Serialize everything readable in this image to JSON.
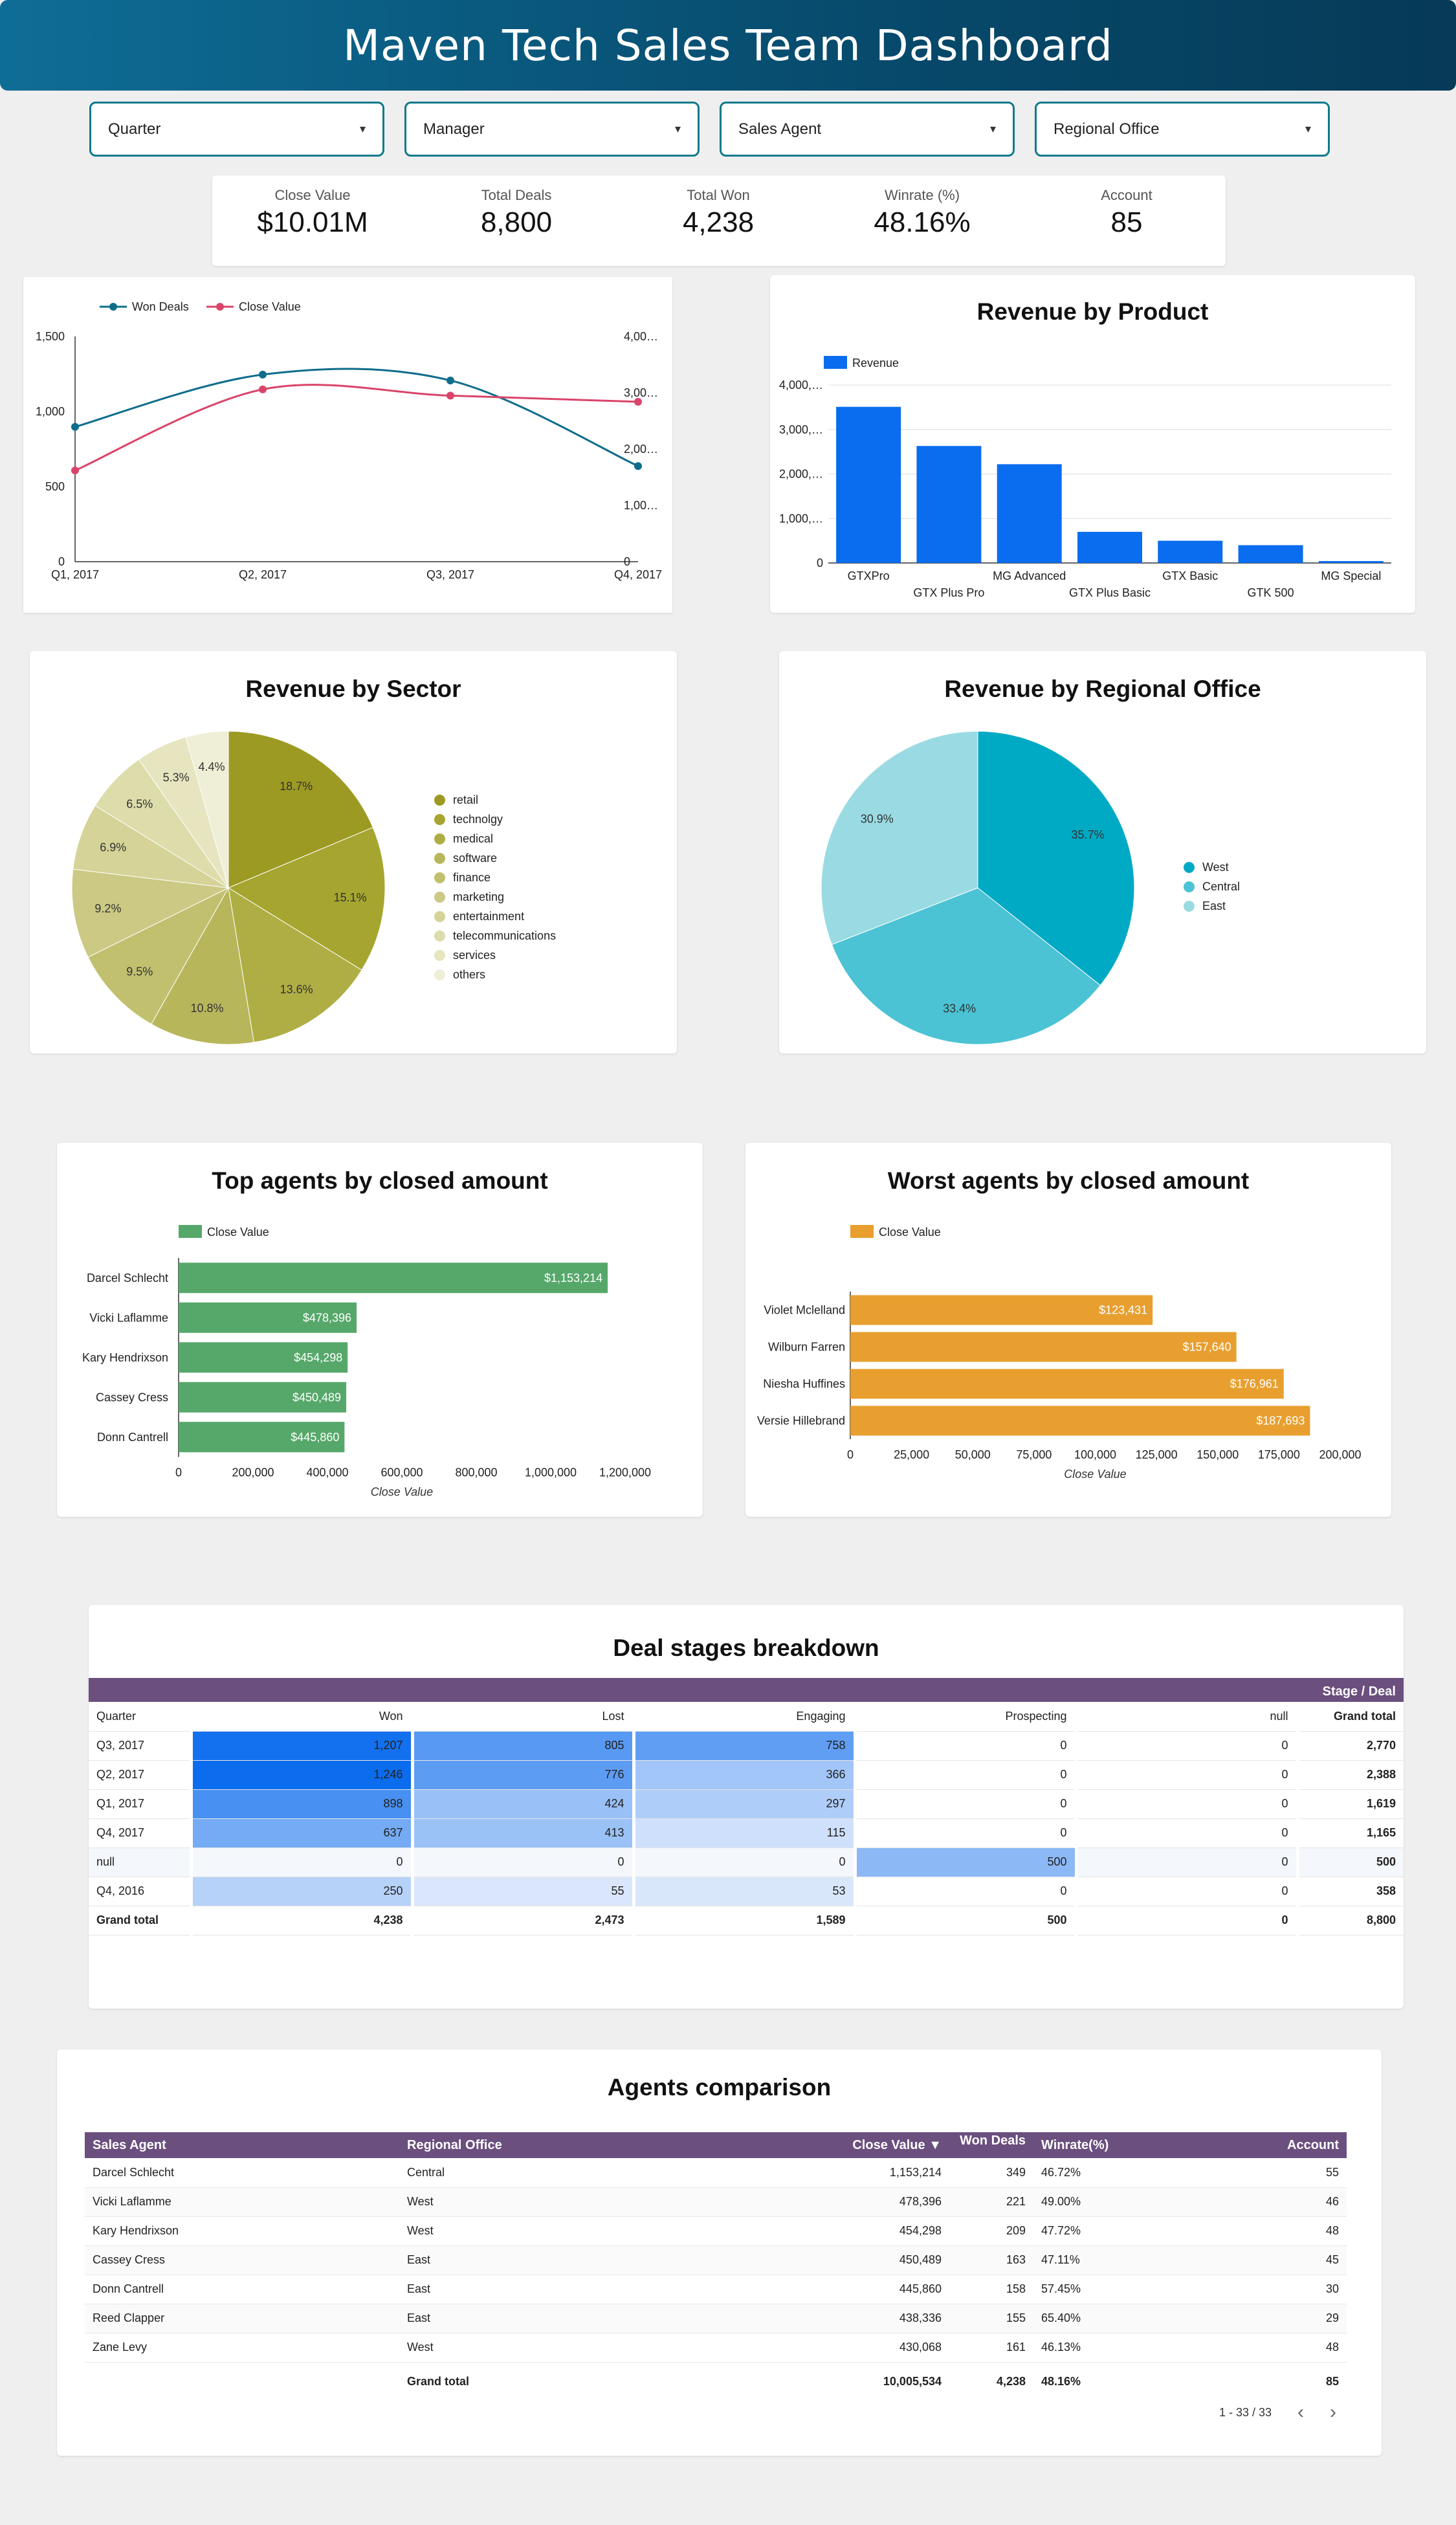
{
  "header": {
    "title": "Maven Tech Sales Team Dashboard"
  },
  "filters": [
    {
      "label": "Quarter"
    },
    {
      "label": "Manager"
    },
    {
      "label": "Sales Agent"
    },
    {
      "label": "Regional Office"
    }
  ],
  "kpis": [
    {
      "label": "Close Value",
      "value": "$10.01M"
    },
    {
      "label": "Total Deals",
      "value": "8,800"
    },
    {
      "label": "Total Won",
      "value": "4,238"
    },
    {
      "label": "Winrate (%)",
      "value": "48.16%"
    },
    {
      "label": "Account",
      "value": "85"
    }
  ],
  "chart_data": [
    {
      "id": "trend",
      "type": "line",
      "title": "",
      "categories": [
        "Q1, 2017",
        "Q2, 2017",
        "Q3, 2017",
        "Q4, 2017"
      ],
      "series": [
        {
          "name": "Won Deals",
          "axis": "left",
          "color": "#0e6d8a",
          "values": [
            898,
            1246,
            1207,
            637
          ]
        },
        {
          "name": "Close Value",
          "axis": "right",
          "color": "#d9456a",
          "values": [
            1620000,
            3060000,
            2950000,
            2840000
          ]
        }
      ],
      "left_ticks": [
        "0",
        "500",
        "1,000",
        "1,500"
      ],
      "left_ylim": [
        0,
        1500
      ],
      "right_ticks": [
        "0",
        "1,00…",
        "2,00…",
        "3,00…",
        "4,00…"
      ],
      "right_ylim": [
        0,
        4000000
      ]
    },
    {
      "id": "product",
      "type": "bar",
      "title": "Revenue by Product",
      "legend": "Revenue",
      "color": "#0a6cee",
      "categories": [
        "GTXPro",
        "GTX Plus Pro",
        "MG Advanced",
        "GTX Plus Basic",
        "GTX Basic",
        "GTK 500",
        "MG Special"
      ],
      "values": [
        3510000,
        2630000,
        2220000,
        700000,
        500000,
        400000,
        43000
      ],
      "ticks": [
        "0",
        "1,000,…",
        "2,000,…",
        "3,000,…",
        "4,000,…"
      ],
      "ylim": [
        0,
        4000000
      ]
    },
    {
      "id": "sector",
      "type": "pie",
      "title": "Revenue by Sector",
      "labels": [
        "retail",
        "technolgy",
        "medical",
        "software",
        "finance",
        "marketing",
        "entertainment",
        "telecommunications",
        "services",
        "others"
      ],
      "values": [
        18.7,
        15.1,
        13.6,
        10.8,
        9.5,
        9.2,
        6.9,
        6.5,
        5.3,
        4.4
      ],
      "value_labels": [
        "18.7%",
        "15.1%",
        "13.6%",
        "10.8%",
        "9.5%",
        "9.2%",
        "6.9%",
        "6.5%",
        "5.3%",
        "4.4%"
      ],
      "colors": [
        "#9c9a23",
        "#a6a52f",
        "#afae44",
        "#b8b65b",
        "#c1c06f",
        "#cbc983",
        "#d5d397",
        "#dddcab",
        "#e6e5c0",
        "#efeed6"
      ]
    },
    {
      "id": "office",
      "type": "pie",
      "title": "Revenue by Regional Office",
      "labels": [
        "West",
        "Central",
        "East"
      ],
      "values": [
        35.7,
        33.4,
        30.9
      ],
      "value_labels": [
        "35.7%",
        "33.4%",
        "30.9%"
      ],
      "colors": [
        "#00a9c4",
        "#4bc3d4",
        "#9adbe3"
      ]
    },
    {
      "id": "top",
      "type": "bar",
      "orientation": "horizontal",
      "title": "Top agents by closed amount",
      "legend": "Close Value",
      "xlabel": "Close Value",
      "color": "#56a86a",
      "categories": [
        "Darcel Schlecht",
        "Vicki Laflamme",
        "Kary Hendrixson",
        "Cassey Cress",
        "Donn Cantrell"
      ],
      "values": [
        1153214,
        478396,
        454298,
        450489,
        445860
      ],
      "value_labels": [
        "$1,153,214",
        "$478,396",
        "$454,298",
        "$450,489",
        "$445,860"
      ],
      "ticks": [
        "0",
        "200,000",
        "400,000",
        "600,000",
        "800,000",
        "1,000,000",
        "1,200,000"
      ],
      "xlim": [
        0,
        1200000
      ]
    },
    {
      "id": "worst",
      "type": "bar",
      "orientation": "horizontal",
      "title": "Worst agents by closed amount",
      "legend": "Close Value",
      "xlabel": "Close Value",
      "color": "#e89f2f",
      "categories": [
        "Violet Mclelland",
        "Wilburn Farren",
        "Niesha Huffines",
        "Versie Hillebrand"
      ],
      "values": [
        123431,
        157640,
        176961,
        187693
      ],
      "value_labels": [
        "$123,431",
        "$157,640",
        "$176,961",
        "$187,693"
      ],
      "ticks": [
        "0",
        "25,000",
        "50,000",
        "75,000",
        "100,000",
        "125,000",
        "150,000",
        "175,000",
        "200,000"
      ],
      "xlim": [
        0,
        200000
      ]
    }
  ],
  "pivot": {
    "title": "Deal stages breakdown",
    "group_header": "Stage / Deal",
    "row_header": "Quarter",
    "columns": [
      "Won",
      "Lost",
      "Engaging",
      "Prospecting",
      "null",
      "Grand total"
    ],
    "rows": [
      {
        "label": "Q3, 2017",
        "cells": [
          "1,207",
          "805",
          "758",
          "0",
          "0",
          "2,770"
        ],
        "vals": [
          1207,
          805,
          758,
          0,
          0
        ]
      },
      {
        "label": "Q2, 2017",
        "cells": [
          "1,246",
          "776",
          "366",
          "0",
          "0",
          "2,388"
        ],
        "vals": [
          1246,
          776,
          366,
          0,
          0
        ]
      },
      {
        "label": "Q1, 2017",
        "cells": [
          "898",
          "424",
          "297",
          "0",
          "0",
          "1,619"
        ],
        "vals": [
          898,
          424,
          297,
          0,
          0
        ]
      },
      {
        "label": "Q4, 2017",
        "cells": [
          "637",
          "413",
          "115",
          "0",
          "0",
          "1,165"
        ],
        "vals": [
          637,
          413,
          115,
          0,
          0
        ]
      },
      {
        "label": "null",
        "cells": [
          "0",
          "0",
          "0",
          "500",
          "0",
          "500"
        ],
        "vals": [
          0,
          0,
          0,
          500,
          0
        ]
      },
      {
        "label": "Q4, 2016",
        "cells": [
          "250",
          "55",
          "53",
          "0",
          "0",
          "358"
        ],
        "vals": [
          250,
          55,
          53,
          0,
          0
        ]
      }
    ],
    "total": {
      "label": "Grand total",
      "cells": [
        "4,238",
        "2,473",
        "1,589",
        "500",
        "0",
        "8,800"
      ]
    }
  },
  "comparison": {
    "title": "Agents comparison",
    "columns": [
      "Sales Agent",
      "Regional Office",
      "Close Value ▼",
      "Won Deals",
      "Winrate(%)",
      "Account"
    ],
    "rows": [
      [
        "Darcel Schlecht",
        "Central",
        "1,153,214",
        "349",
        "46.72%",
        "55"
      ],
      [
        "Vicki Laflamme",
        "West",
        "478,396",
        "221",
        "49.00%",
        "46"
      ],
      [
        "Kary Hendrixson",
        "West",
        "454,298",
        "209",
        "47.72%",
        "48"
      ],
      [
        "Cassey Cress",
        "East",
        "450,489",
        "163",
        "47.11%",
        "45"
      ],
      [
        "Donn Cantrell",
        "East",
        "445,860",
        "158",
        "57.45%",
        "30"
      ],
      [
        "Reed Clapper",
        "East",
        "438,336",
        "155",
        "65.40%",
        "29"
      ],
      [
        "Zane Levy",
        "West",
        "430,068",
        "161",
        "46.13%",
        "48"
      ]
    ],
    "total": [
      "",
      "Grand total",
      "10,005,534",
      "4,238",
      "48.16%",
      "85"
    ],
    "pagination": "1 - 33 / 33"
  }
}
